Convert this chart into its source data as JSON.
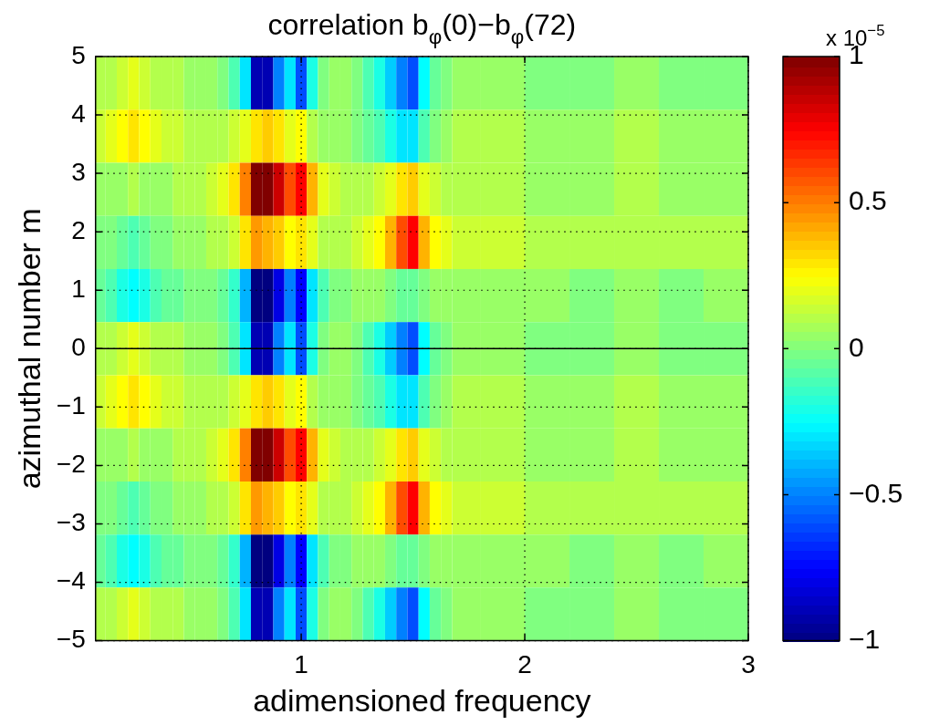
{
  "chart_data": {
    "type": "heatmap",
    "title": "correlation b$_{φ}$(0)−b$_{φ}$(72)",
    "xlabel": "adimensioned frequency",
    "ylabel": "azimuthal number m",
    "clabel": "x 10$^{−5}$",
    "x": [
      0.1,
      0.15,
      0.2,
      0.25,
      0.3,
      0.35,
      0.4,
      0.45,
      0.5,
      0.55,
      0.6,
      0.65,
      0.7,
      0.75,
      0.8,
      0.85,
      0.9,
      0.95,
      1.0,
      1.05,
      1.1,
      1.15,
      1.2,
      1.25,
      1.3,
      1.35,
      1.4,
      1.45,
      1.5,
      1.55,
      1.6,
      1.65,
      1.7,
      1.9,
      2.1,
      2.3,
      2.5,
      2.7,
      2.9
    ],
    "xlim": [
      0.08,
      3
    ],
    "xticks": [
      1,
      2,
      3
    ],
    "ylim": [
      -5,
      5
    ],
    "yticks": [
      -5,
      -4,
      -3,
      -2,
      -1,
      0,
      1,
      2,
      3,
      4,
      5
    ],
    "clim": [
      -1,
      1
    ],
    "cticks": [
      -1,
      -0.5,
      0,
      0.5,
      1
    ],
    "grid": true,
    "line_style": "dotted",
    "ref_lines": [
      {
        "axis": "y",
        "value": 0,
        "color": "#000000"
      }
    ],
    "cells": [
      [
        0.1,
        0.1,
        0.15,
        0.2,
        0.15,
        0.1,
        0.1,
        0.1,
        0.05,
        0.05,
        0.05,
        0.0,
        -0.1,
        -0.3,
        -0.9,
        -0.9,
        -0.5,
        -0.3,
        -0.6,
        -0.2,
        0.0,
        0.05,
        0.05,
        0.0,
        -0.1,
        -0.2,
        -0.35,
        -0.5,
        -0.6,
        -0.25,
        -0.05,
        0.0,
        0.05,
        0.05,
        0.0,
        0.0,
        0.05,
        0.0,
        0.0
      ],
      [
        0.15,
        0.2,
        0.25,
        0.3,
        0.25,
        0.2,
        0.15,
        0.15,
        0.1,
        0.1,
        0.1,
        0.1,
        0.15,
        0.2,
        0.3,
        0.35,
        0.3,
        0.2,
        0.25,
        0.1,
        0.05,
        0.05,
        0.05,
        0.0,
        -0.05,
        -0.1,
        -0.2,
        -0.3,
        -0.3,
        -0.1,
        0.0,
        0.05,
        0.1,
        0.1,
        0.05,
        0.05,
        0.1,
        0.05,
        0.05
      ],
      [
        0.05,
        0.05,
        0.05,
        0.1,
        0.05,
        0.05,
        0.05,
        0.1,
        0.1,
        0.1,
        0.15,
        0.2,
        0.3,
        0.5,
        1.0,
        1.0,
        0.85,
        0.6,
        0.75,
        0.4,
        0.2,
        0.15,
        0.1,
        0.1,
        0.1,
        0.15,
        0.2,
        0.3,
        0.35,
        0.2,
        0.15,
        0.1,
        0.1,
        0.1,
        0.05,
        0.05,
        0.1,
        0.05,
        0.05
      ],
      [
        0.0,
        0.0,
        -0.05,
        -0.1,
        -0.05,
        0.0,
        0.0,
        0.05,
        0.05,
        0.05,
        0.1,
        0.1,
        0.15,
        0.3,
        0.45,
        0.4,
        0.35,
        0.25,
        0.3,
        0.2,
        0.1,
        0.1,
        0.1,
        0.15,
        0.2,
        0.25,
        0.4,
        0.6,
        0.75,
        0.4,
        0.25,
        0.2,
        0.15,
        0.15,
        0.1,
        0.1,
        0.1,
        0.1,
        0.1
      ],
      [
        -0.05,
        -0.1,
        -0.2,
        -0.25,
        -0.2,
        -0.1,
        -0.05,
        -0.05,
        0.0,
        0.0,
        0.0,
        -0.05,
        -0.15,
        -0.4,
        -1.0,
        -1.0,
        -0.8,
        -0.5,
        -0.75,
        -0.3,
        -0.1,
        0.0,
        0.0,
        0.05,
        0.05,
        0.05,
        0.0,
        -0.05,
        -0.05,
        0.0,
        0.05,
        0.05,
        0.05,
        0.05,
        0.05,
        0.0,
        0.05,
        0.0,
        0.05
      ],
      [
        0.1,
        0.1,
        0.15,
        0.2,
        0.15,
        0.1,
        0.1,
        0.1,
        0.05,
        0.05,
        0.05,
        0.0,
        -0.1,
        -0.3,
        -0.9,
        -0.9,
        -0.5,
        -0.3,
        -0.6,
        -0.2,
        0.0,
        0.05,
        0.05,
        0.0,
        -0.1,
        -0.2,
        -0.35,
        -0.5,
        -0.6,
        -0.25,
        -0.05,
        0.0,
        0.05,
        0.05,
        0.0,
        0.0,
        0.05,
        0.0,
        0.0
      ],
      [
        0.15,
        0.2,
        0.25,
        0.3,
        0.25,
        0.2,
        0.15,
        0.15,
        0.1,
        0.1,
        0.1,
        0.1,
        0.15,
        0.2,
        0.3,
        0.35,
        0.3,
        0.2,
        0.25,
        0.1,
        0.05,
        0.05,
        0.05,
        0.0,
        -0.05,
        -0.1,
        -0.2,
        -0.3,
        -0.3,
        -0.1,
        0.0,
        0.05,
        0.1,
        0.1,
        0.05,
        0.05,
        0.1,
        0.05,
        0.05
      ],
      [
        0.05,
        0.05,
        0.05,
        0.1,
        0.05,
        0.05,
        0.05,
        0.1,
        0.1,
        0.1,
        0.15,
        0.2,
        0.3,
        0.5,
        1.0,
        1.0,
        0.85,
        0.6,
        0.75,
        0.4,
        0.2,
        0.15,
        0.1,
        0.1,
        0.1,
        0.15,
        0.2,
        0.3,
        0.35,
        0.2,
        0.15,
        0.1,
        0.1,
        0.1,
        0.05,
        0.05,
        0.1,
        0.05,
        0.05
      ],
      [
        0.0,
        0.0,
        -0.05,
        -0.1,
        -0.05,
        0.0,
        0.0,
        0.05,
        0.05,
        0.05,
        0.1,
        0.1,
        0.15,
        0.3,
        0.45,
        0.4,
        0.35,
        0.25,
        0.3,
        0.2,
        0.1,
        0.1,
        0.1,
        0.15,
        0.2,
        0.25,
        0.4,
        0.6,
        0.75,
        0.4,
        0.25,
        0.2,
        0.15,
        0.15,
        0.1,
        0.1,
        0.1,
        0.1,
        0.1
      ],
      [
        -0.05,
        -0.1,
        -0.2,
        -0.25,
        -0.2,
        -0.1,
        -0.05,
        -0.05,
        0.0,
        0.0,
        0.0,
        -0.05,
        -0.15,
        -0.4,
        -1.0,
        -1.0,
        -0.8,
        -0.5,
        -0.75,
        -0.3,
        -0.1,
        0.0,
        0.0,
        0.05,
        0.05,
        0.05,
        0.0,
        -0.05,
        -0.05,
        0.0,
        0.05,
        0.05,
        0.05,
        0.05,
        0.05,
        0.0,
        0.05,
        0.0,
        0.05
      ],
      [
        0.1,
        0.1,
        0.15,
        0.2,
        0.15,
        0.1,
        0.1,
        0.1,
        0.05,
        0.05,
        0.05,
        0.0,
        -0.1,
        -0.3,
        -0.9,
        -0.9,
        -0.5,
        -0.3,
        -0.6,
        -0.2,
        0.0,
        0.05,
        0.05,
        0.0,
        -0.1,
        -0.2,
        -0.35,
        -0.5,
        -0.6,
        -0.25,
        -0.05,
        0.0,
        0.05,
        0.05,
        0.0,
        0.0,
        0.05,
        0.0,
        0.0
      ]
    ]
  }
}
